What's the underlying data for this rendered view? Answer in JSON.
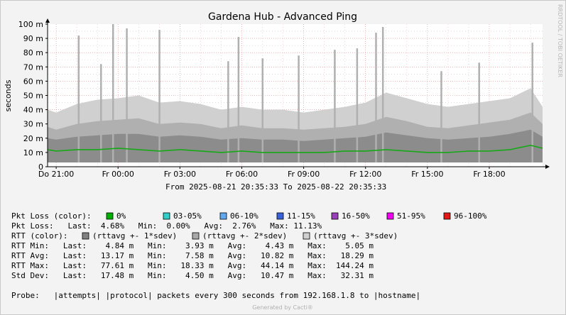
{
  "colors": {
    "canvas_bg": "#f3f3f3",
    "plot_bg": "#ffffff",
    "grid_major": "#e08888",
    "grid_minor": "#e8b8b8",
    "band1": "#8c8c8c",
    "band2": "#b0b0b0",
    "band3": "#d0d0d0",
    "avg_line": "#18a818"
  },
  "side_text": "RRDTOOL / TOBI OETIKER",
  "footer": "Generated by Cacti®",
  "legend": {
    "pkt_loss_color_label": "Pkt Loss (color):",
    "loss_colors": [
      {
        "color": "#00b000",
        "label": "0%"
      },
      {
        "color": "#30d0c8",
        "label": "03-05%"
      },
      {
        "color": "#60a8f0",
        "label": "06-10%"
      },
      {
        "color": "#3860d8",
        "label": "11-15%"
      },
      {
        "color": "#9840b8",
        "label": "16-50%"
      },
      {
        "color": "#f000f0",
        "label": "51-95%"
      },
      {
        "color": "#e01818",
        "label": "96-100%"
      }
    ],
    "pkt_loss_line": "Pkt Loss:   Last:  4.68%   Min:  0.00%   Avg:  2.76%   Max: 11.13%",
    "rtt_color_label": "RTT (color):",
    "rtt_colors": [
      {
        "color": "#808080",
        "label": "(rttavg +- 1*sdev)"
      },
      {
        "color": "#a8a8a8",
        "label": "(rttavg +- 2*sdev)"
      },
      {
        "color": "#d0d0d0",
        "label": "(rttavg +- 3*sdev)"
      }
    ],
    "stat_lines": [
      "RTT Min:   Last:    4.84 m   Min:    3.93 m   Avg:    4.43 m   Max:    5.05 m",
      "RTT Avg:   Last:   13.17 m   Min:    7.58 m   Avg:   10.82 m   Max:   18.29 m",
      "RTT Max:   Last:   77.61 m   Min:   18.33 m   Avg:   44.14 m   Max:  144.24 m",
      "Std Dev:   Last:   17.48 m   Min:    4.50 m   Avg:   10.47 m   Max:   32.31 m"
    ],
    "probe_line": "Probe:   |attempts| |protocol| packets every 300 seconds from 192.168.1.8 to |hostname|"
  },
  "chart_data": {
    "type": "area",
    "title": "Gardena Hub - Advanced Ping",
    "subtitle": "From 2025-08-21 20:35:33 To 2025-08-22 20:35:33",
    "xlabel": "",
    "ylabel": "seconds",
    "ylim": [
      0,
      100
    ],
    "y_unit": "m",
    "y_ticks": [
      {
        "value": 0,
        "label": "0"
      },
      {
        "value": 10,
        "label": "10 m"
      },
      {
        "value": 20,
        "label": "20 m"
      },
      {
        "value": 30,
        "label": "30 m"
      },
      {
        "value": 40,
        "label": "40 m"
      },
      {
        "value": 50,
        "label": "50 m"
      },
      {
        "value": 60,
        "label": "60 m"
      },
      {
        "value": 70,
        "label": "70 m"
      },
      {
        "value": 80,
        "label": "80 m"
      },
      {
        "value": 90,
        "label": "90 m"
      },
      {
        "value": 100,
        "label": "100 m"
      }
    ],
    "x_range": [
      "2025-08-21 20:35",
      "2025-08-22 20:35"
    ],
    "x_ticks": [
      {
        "time": "2025-08-21 21:00",
        "label": "Do 21:00"
      },
      {
        "time": "2025-08-22 00:00",
        "label": "Fr 00:00"
      },
      {
        "time": "2025-08-22 03:00",
        "label": "Fr 03:00"
      },
      {
        "time": "2025-08-22 06:00",
        "label": "Fr 06:00"
      },
      {
        "time": "2025-08-22 09:00",
        "label": "Fr 09:00"
      },
      {
        "time": "2025-08-22 12:00",
        "label": "Fr 12:00"
      },
      {
        "time": "2025-08-22 15:00",
        "label": "Fr 15:00"
      },
      {
        "time": "2025-08-22 18:00",
        "label": "Fr 18:00"
      }
    ],
    "series": [
      {
        "name": "(rttavg +- 3*sdev)",
        "values": [
          [
            "2025-08-21 20:35",
            40
          ],
          [
            "2025-08-21 21:00",
            38
          ],
          [
            "2025-08-21 22:00",
            44
          ],
          [
            "2025-08-21 23:00",
            47
          ],
          [
            "2025-08-22 00:00",
            48
          ],
          [
            "2025-08-22 01:00",
            50
          ],
          [
            "2025-08-22 02:00",
            45
          ],
          [
            "2025-08-22 03:00",
            46
          ],
          [
            "2025-08-22 04:00",
            44
          ],
          [
            "2025-08-22 05:00",
            40
          ],
          [
            "2025-08-22 06:00",
            42
          ],
          [
            "2025-08-22 07:00",
            40
          ],
          [
            "2025-08-22 08:00",
            40
          ],
          [
            "2025-08-22 09:00",
            38
          ],
          [
            "2025-08-22 10:00",
            40
          ],
          [
            "2025-08-22 11:00",
            42
          ],
          [
            "2025-08-22 12:00",
            45
          ],
          [
            "2025-08-22 13:00",
            52
          ],
          [
            "2025-08-22 14:00",
            48
          ],
          [
            "2025-08-22 15:00",
            44
          ],
          [
            "2025-08-22 16:00",
            42
          ],
          [
            "2025-08-22 17:00",
            44
          ],
          [
            "2025-08-22 18:00",
            46
          ],
          [
            "2025-08-22 19:00",
            48
          ],
          [
            "2025-08-22 20:00",
            55
          ],
          [
            "2025-08-22 20:35",
            42
          ]
        ]
      },
      {
        "name": "(rttavg +- 2*sdev)",
        "values": [
          [
            "2025-08-21 20:35",
            28
          ],
          [
            "2025-08-21 21:00",
            26
          ],
          [
            "2025-08-21 22:00",
            30
          ],
          [
            "2025-08-21 23:00",
            32
          ],
          [
            "2025-08-22 00:00",
            33
          ],
          [
            "2025-08-22 01:00",
            34
          ],
          [
            "2025-08-22 02:00",
            30
          ],
          [
            "2025-08-22 03:00",
            31
          ],
          [
            "2025-08-22 04:00",
            30
          ],
          [
            "2025-08-22 05:00",
            27
          ],
          [
            "2025-08-22 06:00",
            29
          ],
          [
            "2025-08-22 07:00",
            27
          ],
          [
            "2025-08-22 08:00",
            27
          ],
          [
            "2025-08-22 09:00",
            26
          ],
          [
            "2025-08-22 10:00",
            27
          ],
          [
            "2025-08-22 11:00",
            28
          ],
          [
            "2025-08-22 12:00",
            30
          ],
          [
            "2025-08-22 13:00",
            35
          ],
          [
            "2025-08-22 14:00",
            32
          ],
          [
            "2025-08-22 15:00",
            28
          ],
          [
            "2025-08-22 16:00",
            27
          ],
          [
            "2025-08-22 17:00",
            29
          ],
          [
            "2025-08-22 18:00",
            31
          ],
          [
            "2025-08-22 19:00",
            33
          ],
          [
            "2025-08-22 20:00",
            38
          ],
          [
            "2025-08-22 20:35",
            30
          ]
        ]
      },
      {
        "name": "(rttavg +- 1*sdev)",
        "values": [
          [
            "2025-08-21 20:35",
            20
          ],
          [
            "2025-08-21 21:00",
            19
          ],
          [
            "2025-08-21 22:00",
            21
          ],
          [
            "2025-08-21 23:00",
            22
          ],
          [
            "2025-08-22 00:00",
            23
          ],
          [
            "2025-08-22 01:00",
            23
          ],
          [
            "2025-08-22 02:00",
            21
          ],
          [
            "2025-08-22 03:00",
            22
          ],
          [
            "2025-08-22 04:00",
            21
          ],
          [
            "2025-08-22 05:00",
            19
          ],
          [
            "2025-08-22 06:00",
            20
          ],
          [
            "2025-08-22 07:00",
            19
          ],
          [
            "2025-08-22 08:00",
            19
          ],
          [
            "2025-08-22 09:00",
            18
          ],
          [
            "2025-08-22 10:00",
            19
          ],
          [
            "2025-08-22 11:00",
            20
          ],
          [
            "2025-08-22 12:00",
            21
          ],
          [
            "2025-08-22 13:00",
            24
          ],
          [
            "2025-08-22 14:00",
            22
          ],
          [
            "2025-08-22 15:00",
            20
          ],
          [
            "2025-08-22 16:00",
            19
          ],
          [
            "2025-08-22 17:00",
            20
          ],
          [
            "2025-08-22 18:00",
            21
          ],
          [
            "2025-08-22 19:00",
            23
          ],
          [
            "2025-08-22 20:00",
            26
          ],
          [
            "2025-08-22 20:35",
            21
          ]
        ]
      },
      {
        "name": "RTT Avg",
        "values": [
          [
            "2025-08-21 20:35",
            12
          ],
          [
            "2025-08-21 21:00",
            11
          ],
          [
            "2025-08-21 22:00",
            12
          ],
          [
            "2025-08-21 23:00",
            12
          ],
          [
            "2025-08-22 00:00",
            13
          ],
          [
            "2025-08-22 01:00",
            12
          ],
          [
            "2025-08-22 02:00",
            11
          ],
          [
            "2025-08-22 03:00",
            12
          ],
          [
            "2025-08-22 04:00",
            11
          ],
          [
            "2025-08-22 05:00",
            10
          ],
          [
            "2025-08-22 06:00",
            11
          ],
          [
            "2025-08-22 07:00",
            10
          ],
          [
            "2025-08-22 08:00",
            10
          ],
          [
            "2025-08-22 09:00",
            10
          ],
          [
            "2025-08-22 10:00",
            10
          ],
          [
            "2025-08-22 11:00",
            11
          ],
          [
            "2025-08-22 12:00",
            11
          ],
          [
            "2025-08-22 13:00",
            12
          ],
          [
            "2025-08-22 14:00",
            11
          ],
          [
            "2025-08-22 15:00",
            10
          ],
          [
            "2025-08-22 16:00",
            10
          ],
          [
            "2025-08-22 17:00",
            11
          ],
          [
            "2025-08-22 18:00",
            11
          ],
          [
            "2025-08-22 19:00",
            12
          ],
          [
            "2025-08-22 20:00",
            15
          ],
          [
            "2025-08-22 20:35",
            13
          ]
        ]
      }
    ],
    "spikes": [
      [
        "2025-08-21 22:05",
        92
      ],
      [
        "2025-08-21 23:10",
        72
      ],
      [
        "2025-08-21 23:45",
        100
      ],
      [
        "2025-08-22 00:25",
        97
      ],
      [
        "2025-08-22 02:00",
        96
      ],
      [
        "2025-08-22 05:20",
        74
      ],
      [
        "2025-08-22 05:50",
        91
      ],
      [
        "2025-08-22 07:00",
        76
      ],
      [
        "2025-08-22 08:45",
        78
      ],
      [
        "2025-08-22 10:30",
        82
      ],
      [
        "2025-08-22 11:35",
        83
      ],
      [
        "2025-08-22 12:30",
        94
      ],
      [
        "2025-08-22 12:50",
        98
      ],
      [
        "2025-08-22 15:40",
        67
      ],
      [
        "2025-08-22 17:30",
        73
      ],
      [
        "2025-08-22 20:05",
        87
      ]
    ],
    "grid": true,
    "legend": "bottom"
  }
}
